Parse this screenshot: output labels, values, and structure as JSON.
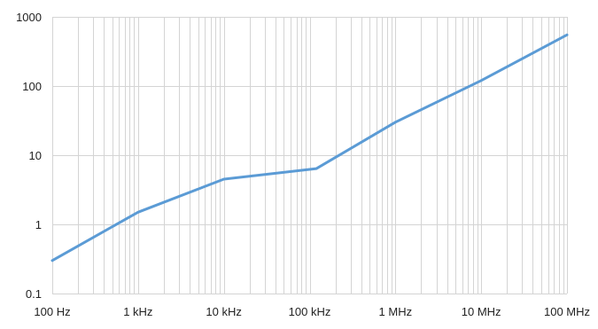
{
  "chart_data": {
    "type": "line",
    "x_scale": "log",
    "y_scale": "log",
    "xlim": [
      100,
      100000000
    ],
    "ylim": [
      0.1,
      1000
    ],
    "x_ticks": [
      {
        "value": 100,
        "label": "100 Hz"
      },
      {
        "value": 1000,
        "label": "1 kHz"
      },
      {
        "value": 10000,
        "label": "10 kHz"
      },
      {
        "value": 100000,
        "label": "100 kHz"
      },
      {
        "value": 1000000,
        "label": "1 MHz"
      },
      {
        "value": 10000000,
        "label": "10 MHz"
      },
      {
        "value": 100000000,
        "label": "100 MHz"
      }
    ],
    "y_ticks": [
      {
        "value": 0.1,
        "label": "0.1"
      },
      {
        "value": 1,
        "label": "1"
      },
      {
        "value": 10,
        "label": "10"
      },
      {
        "value": 100,
        "label": "100"
      },
      {
        "value": 1000,
        "label": "1000"
      }
    ],
    "grid": {
      "major": true,
      "minor_x": true
    },
    "legend": "none",
    "series": [
      {
        "color": "#5b9bd5",
        "points": [
          {
            "x": 100,
            "y": 0.3
          },
          {
            "x": 1000,
            "y": 1.5
          },
          {
            "x": 10000,
            "y": 4.5
          },
          {
            "x": 120000,
            "y": 6.4
          },
          {
            "x": 1000000,
            "y": 30
          },
          {
            "x": 10000000,
            "y": 120
          },
          {
            "x": 100000000,
            "y": 550
          }
        ]
      }
    ],
    "colors": {
      "grid": "#d4d4d4",
      "text": "#222222",
      "series": "#5b9bd5"
    }
  }
}
